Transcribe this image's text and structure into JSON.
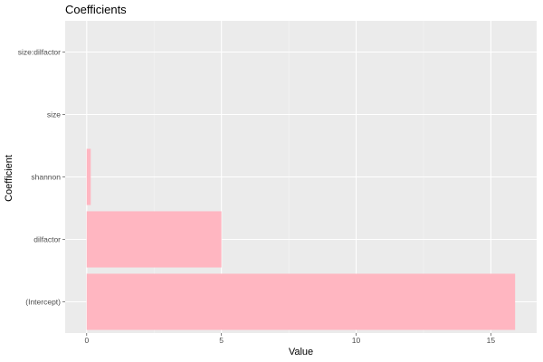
{
  "chart_data": {
    "type": "bar",
    "orientation": "horizontal",
    "title": "Coefficients",
    "xlabel": "Value",
    "ylabel": "Coefficient",
    "categories": [
      "(Intercept)",
      "dilfactor",
      "shannon",
      "size",
      "size:dilfactor"
    ],
    "values": [
      15.9,
      5.0,
      0.15,
      0.0,
      0.0
    ],
    "xlim": [
      -0.8,
      16.7
    ],
    "xticks": [
      0,
      5,
      10,
      15
    ],
    "grid": true,
    "legend": "none"
  },
  "colors": {
    "bar": "#ffb6c1",
    "panel": "#ebebeb",
    "grid_major": "#ffffff",
    "grid_minor": "#f5f5f5",
    "tick": "#333333"
  }
}
